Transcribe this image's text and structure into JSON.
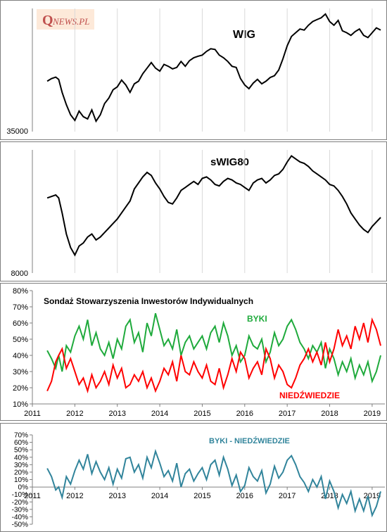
{
  "logo": {
    "text_q": "Q",
    "text_rest": "NEWS.PL",
    "bg": "#fde9d9",
    "color": "#c0504d"
  },
  "colors": {
    "wig": "#000000",
    "swig": "#000000",
    "byki": "#1faa3c",
    "niedz": "#ff0000",
    "diff": "#31849b",
    "axis": "#808080",
    "grid": "#d9d9d9"
  },
  "chart_data": [
    {
      "type": "line",
      "title": "WIG",
      "ylabel": "",
      "y_ticks": [
        "35000"
      ],
      "x": [
        2011.35,
        2011.45,
        2011.55,
        2011.62,
        2011.7,
        2011.8,
        2011.9,
        2012.0,
        2012.1,
        2012.2,
        2012.3,
        2012.4,
        2012.5,
        2012.6,
        2012.7,
        2012.8,
        2012.9,
        2013.0,
        2013.1,
        2013.2,
        2013.3,
        2013.4,
        2013.5,
        2013.6,
        2013.7,
        2013.8,
        2013.9,
        2014.0,
        2014.1,
        2014.2,
        2014.3,
        2014.4,
        2014.5,
        2014.6,
        2014.7,
        2014.8,
        2014.9,
        2015.0,
        2015.1,
        2015.2,
        2015.3,
        2015.4,
        2015.5,
        2015.6,
        2015.7,
        2015.8,
        2015.9,
        2016.0,
        2016.1,
        2016.2,
        2016.3,
        2016.4,
        2016.5,
        2016.6,
        2016.7,
        2016.8,
        2016.9,
        2017.0,
        2017.1,
        2017.2,
        2017.3,
        2017.4,
        2017.5,
        2017.6,
        2017.7,
        2017.8,
        2017.9,
        2018.0,
        2018.1,
        2018.2,
        2018.3,
        2018.4,
        2018.5,
        2018.6,
        2018.7,
        2018.8,
        2018.9,
        2019.0,
        2019.1,
        2019.2
      ],
      "values": [
        47500,
        48200,
        48600,
        48000,
        44500,
        41200,
        38500,
        37000,
        39500,
        38000,
        37400,
        39800,
        36800,
        38500,
        41500,
        43000,
        45200,
        46000,
        47800,
        46500,
        44500,
        46800,
        47500,
        49500,
        51000,
        52500,
        51000,
        50200,
        52000,
        51500,
        50800,
        51200,
        52800,
        51500,
        53000,
        53800,
        54200,
        54500,
        55500,
        56200,
        56000,
        54500,
        53800,
        52800,
        51500,
        51200,
        48200,
        46500,
        45500,
        47000,
        48000,
        46800,
        47500,
        48500,
        49000,
        50500,
        53500,
        57000,
        59500,
        60500,
        61500,
        61200,
        62500,
        63500,
        64000,
        64500,
        65500,
        63500,
        62500,
        63800,
        61000,
        60500,
        59800,
        60800,
        61500,
        59800,
        59200,
        60500,
        61800,
        61200
      ],
      "ylim": [
        34000,
        67000
      ]
    },
    {
      "type": "line",
      "title": "sWIG80",
      "ylabel": "",
      "y_ticks": [
        "8000"
      ],
      "x": [
        2011.35,
        2011.45,
        2011.55,
        2011.62,
        2011.7,
        2011.8,
        2011.9,
        2012.0,
        2012.1,
        2012.2,
        2012.3,
        2012.4,
        2012.5,
        2012.6,
        2012.7,
        2012.8,
        2012.9,
        2013.0,
        2013.1,
        2013.2,
        2013.3,
        2013.4,
        2013.5,
        2013.6,
        2013.7,
        2013.8,
        2013.9,
        2014.0,
        2014.1,
        2014.2,
        2014.3,
        2014.4,
        2014.5,
        2014.6,
        2014.7,
        2014.8,
        2014.9,
        2015.0,
        2015.1,
        2015.2,
        2015.3,
        2015.4,
        2015.5,
        2015.6,
        2015.7,
        2015.8,
        2015.9,
        2016.0,
        2016.1,
        2016.2,
        2016.3,
        2016.4,
        2016.5,
        2016.6,
        2016.7,
        2016.8,
        2016.9,
        2017.0,
        2017.1,
        2017.2,
        2017.3,
        2017.4,
        2017.5,
        2017.6,
        2017.7,
        2017.8,
        2017.9,
        2018.0,
        2018.1,
        2018.2,
        2018.3,
        2018.4,
        2018.5,
        2018.6,
        2018.7,
        2018.8,
        2018.9,
        2019.0,
        2019.1,
        2019.2
      ],
      "values": [
        12600,
        12700,
        12800,
        12600,
        11600,
        10200,
        9300,
        8800,
        9400,
        9600,
        10000,
        10200,
        9800,
        10000,
        10300,
        10600,
        10900,
        11200,
        11600,
        12000,
        12400,
        13200,
        13600,
        14000,
        14300,
        14100,
        13600,
        13200,
        12700,
        12300,
        12200,
        12600,
        13100,
        13300,
        13500,
        13700,
        13500,
        13900,
        14000,
        13800,
        13500,
        13400,
        13700,
        13900,
        13800,
        13600,
        13500,
        13300,
        13100,
        13600,
        13800,
        13900,
        13600,
        13800,
        14100,
        14200,
        14500,
        15000,
        15400,
        15200,
        15000,
        14900,
        14700,
        14400,
        14200,
        14000,
        13800,
        13500,
        13400,
        13100,
        12700,
        12200,
        11600,
        11200,
        10800,
        10500,
        10300,
        10700,
        11000,
        11300
      ],
      "ylim": [
        7600,
        15800
      ]
    },
    {
      "type": "line",
      "title": "Sondaż Stowarzyszenia Inwestorów Indywidualnych",
      "y_ticks": [
        "10%",
        "20%",
        "30%",
        "40%",
        "50%",
        "60%",
        "70%",
        "80%"
      ],
      "x_ticks": [
        "2011",
        "2012",
        "2013",
        "2014",
        "2015",
        "2016",
        "2017",
        "2018",
        "2019"
      ],
      "ylim": [
        10,
        80
      ],
      "xlim": [
        2011,
        2019.3
      ],
      "x": [
        2011.35,
        2011.45,
        2011.55,
        2011.62,
        2011.7,
        2011.8,
        2011.9,
        2012.0,
        2012.1,
        2012.2,
        2012.3,
        2012.4,
        2012.5,
        2012.6,
        2012.7,
        2012.8,
        2012.9,
        2013.0,
        2013.1,
        2013.2,
        2013.3,
        2013.4,
        2013.5,
        2013.6,
        2013.7,
        2013.8,
        2013.9,
        2014.0,
        2014.1,
        2014.2,
        2014.3,
        2014.4,
        2014.5,
        2014.6,
        2014.7,
        2014.8,
        2014.9,
        2015.0,
        2015.1,
        2015.2,
        2015.3,
        2015.4,
        2015.5,
        2015.6,
        2015.7,
        2015.8,
        2015.9,
        2016.0,
        2016.1,
        2016.2,
        2016.3,
        2016.4,
        2016.5,
        2016.6,
        2016.7,
        2016.8,
        2016.9,
        2017.0,
        2017.1,
        2017.2,
        2017.3,
        2017.4,
        2017.5,
        2017.6,
        2017.7,
        2017.8,
        2017.9,
        2018.0,
        2018.1,
        2018.2,
        2018.3,
        2018.4,
        2018.5,
        2018.6,
        2018.7,
        2018.8,
        2018.9,
        2019.0,
        2019.1,
        2019.2
      ],
      "series": [
        {
          "name": "BYKI",
          "values": [
            43,
            38,
            32,
            40,
            30,
            46,
            42,
            52,
            58,
            50,
            62,
            46,
            54,
            44,
            40,
            48,
            38,
            50,
            44,
            58,
            62,
            48,
            54,
            42,
            60,
            52,
            66,
            56,
            46,
            50,
            44,
            56,
            40,
            48,
            52,
            44,
            48,
            52,
            44,
            54,
            58,
            48,
            60,
            52,
            40,
            46,
            36,
            40,
            52,
            46,
            44,
            50,
            36,
            42,
            54,
            46,
            50,
            58,
            62,
            56,
            48,
            44,
            38,
            46,
            42,
            48,
            32,
            44,
            38,
            28,
            36,
            30,
            38,
            26,
            34,
            28,
            36,
            24,
            30,
            40
          ]
        },
        {
          "name": "NIEDŹWIEDZIE",
          "values": [
            18,
            24,
            36,
            40,
            44,
            32,
            38,
            30,
            22,
            26,
            18,
            28,
            20,
            24,
            30,
            22,
            34,
            26,
            32,
            20,
            22,
            28,
            24,
            30,
            20,
            26,
            18,
            24,
            32,
            28,
            36,
            24,
            40,
            30,
            28,
            36,
            30,
            26,
            34,
            24,
            22,
            32,
            20,
            28,
            38,
            30,
            42,
            38,
            26,
            32,
            36,
            28,
            44,
            38,
            26,
            34,
            30,
            22,
            20,
            26,
            34,
            38,
            44,
            36,
            42,
            34,
            48,
            36,
            44,
            56,
            46,
            52,
            44,
            58,
            50,
            60,
            48,
            62,
            56,
            46
          ]
        }
      ]
    },
    {
      "type": "line",
      "title": "",
      "y_ticks": [
        "70%",
        "60%",
        "50%",
        "40%",
        "30%",
        "20%",
        "10%",
        "0%",
        "-10%",
        "-20%",
        "-30%",
        "-40%",
        "-50%"
      ],
      "x_ticks": [
        "2011",
        "2012",
        "2013",
        "2014",
        "2015",
        "2016",
        "2017",
        "2018",
        "2019"
      ],
      "ylim": [
        -50,
        70
      ],
      "xlim": [
        2011,
        2019.3
      ],
      "x": [
        2011.35,
        2011.45,
        2011.55,
        2011.62,
        2011.7,
        2011.8,
        2011.9,
        2012.0,
        2012.1,
        2012.2,
        2012.3,
        2012.4,
        2012.5,
        2012.6,
        2012.7,
        2012.8,
        2012.9,
        2013.0,
        2013.1,
        2013.2,
        2013.3,
        2013.4,
        2013.5,
        2013.6,
        2013.7,
        2013.8,
        2013.9,
        2014.0,
        2014.1,
        2014.2,
        2014.3,
        2014.4,
        2014.5,
        2014.6,
        2014.7,
        2014.8,
        2014.9,
        2015.0,
        2015.1,
        2015.2,
        2015.3,
        2015.4,
        2015.5,
        2015.6,
        2015.7,
        2015.8,
        2015.9,
        2016.0,
        2016.1,
        2016.2,
        2016.3,
        2016.4,
        2016.5,
        2016.6,
        2016.7,
        2016.8,
        2016.9,
        2017.0,
        2017.1,
        2017.2,
        2017.3,
        2017.4,
        2017.5,
        2017.6,
        2017.7,
        2017.8,
        2017.9,
        2018.0,
        2018.1,
        2018.2,
        2018.3,
        2018.4,
        2018.5,
        2018.6,
        2018.7,
        2018.8,
        2018.9,
        2019.0,
        2019.1,
        2019.2
      ],
      "series": [
        {
          "name": "BYKI - NIEDŹWIEDZIE",
          "values": [
            25,
            14,
            -4,
            0,
            -14,
            14,
            4,
            22,
            36,
            24,
            44,
            18,
            34,
            20,
            10,
            26,
            4,
            24,
            12,
            38,
            40,
            20,
            30,
            12,
            40,
            26,
            48,
            32,
            14,
            22,
            8,
            32,
            0,
            18,
            24,
            8,
            18,
            26,
            10,
            30,
            36,
            16,
            40,
            24,
            2,
            16,
            -6,
            2,
            26,
            14,
            8,
            22,
            -8,
            4,
            28,
            12,
            20,
            36,
            42,
            30,
            14,
            6,
            -6,
            10,
            0,
            14,
            -16,
            8,
            -6,
            -28,
            -10,
            -22,
            -6,
            -32,
            -16,
            -32,
            -12,
            -38,
            -26,
            -6
          ]
        }
      ]
    }
  ]
}
